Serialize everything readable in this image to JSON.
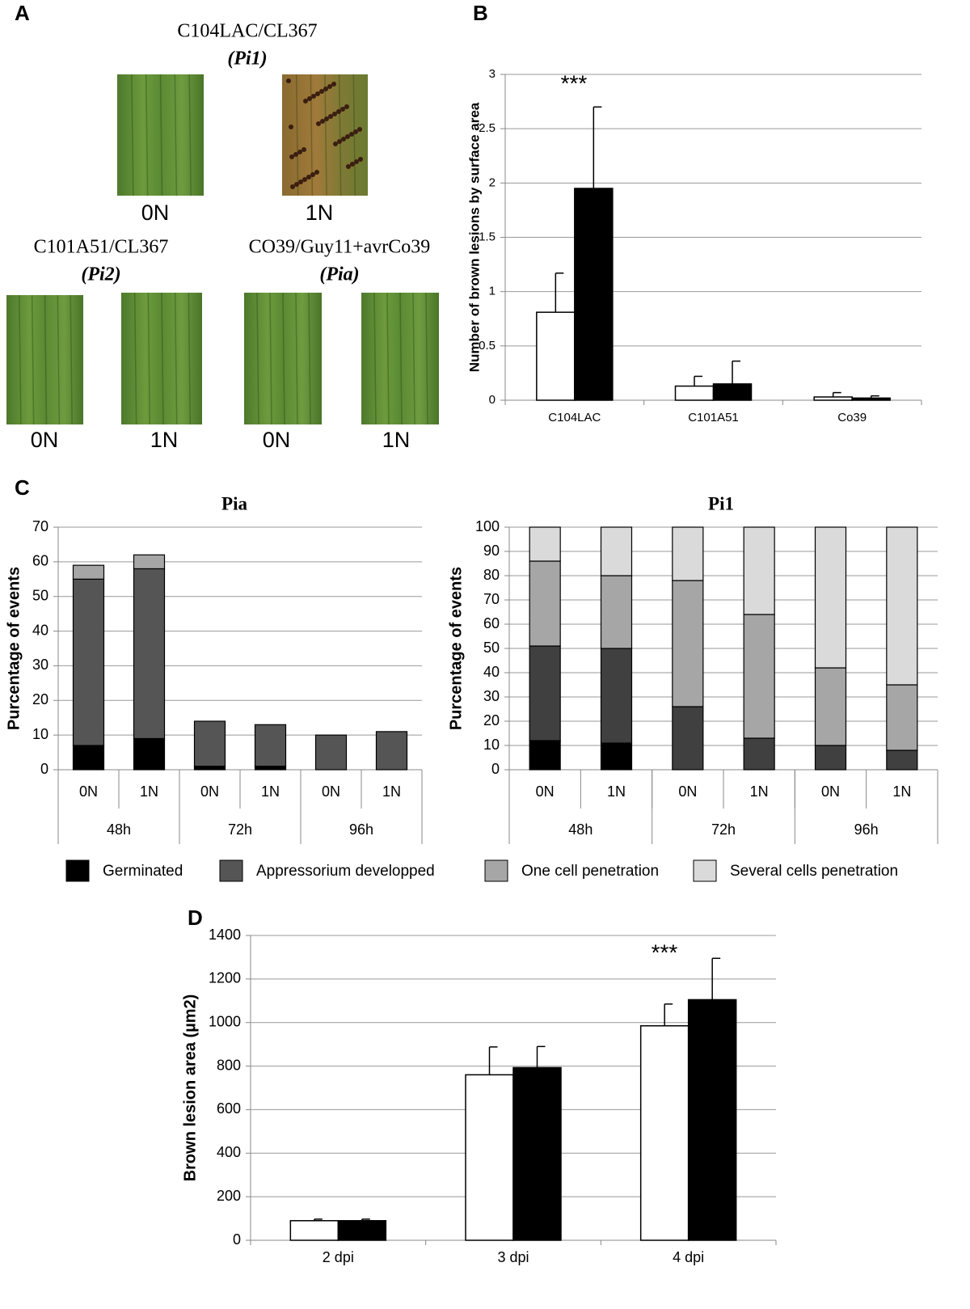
{
  "panel_labels": [
    "A",
    "B",
    "C",
    "D"
  ],
  "leaf_panel": {
    "groups": [
      {
        "title": "C104LAC/CL367",
        "allele": "(Pi1)",
        "leaves": [
          "0N",
          "1N"
        ]
      },
      {
        "title": "C101A51/CL367",
        "allele": "(Pi2)",
        "leaves": [
          "0N",
          "1N"
        ]
      },
      {
        "title": "CO39/Guy11+avrCo39",
        "allele": "(Pia)",
        "leaves": [
          "0N",
          "1N"
        ]
      }
    ]
  },
  "chart_data": [
    {
      "type": "bar",
      "ylabel": "Number of brown lesions by surface area",
      "annotation": "***",
      "categories": [
        "C104LAC",
        "C101A51",
        "Co39"
      ],
      "series": [
        {
          "color": "#ffffff",
          "values": [
            0.81,
            0.13,
            0.03
          ],
          "errors": [
            0.36,
            0.09,
            0.04
          ]
        },
        {
          "color": "#000000",
          "values": [
            1.95,
            0.15,
            0.02
          ],
          "errors": [
            0.75,
            0.21,
            0.02
          ]
        }
      ],
      "ylim": [
        0,
        3
      ],
      "yticks": [
        0,
        0.5,
        1,
        1.5,
        2,
        2.5,
        3
      ],
      "grid": true
    },
    {
      "type": "stacked_bar",
      "title": "Pia",
      "ylabel": "Purcentage of events",
      "legend": "bottom",
      "categories": [
        "0N",
        "1N",
        "0N",
        "1N",
        "0N",
        "1N"
      ],
      "groups": [
        "48h",
        "72h",
        "96h"
      ],
      "series": [
        {
          "name": "Germinated",
          "color": "#000000",
          "values": [
            7,
            9,
            1,
            1,
            0,
            0
          ]
        },
        {
          "name": "Appressorium developped",
          "color": "#555555",
          "values": [
            48,
            49,
            13,
            12,
            10,
            11
          ]
        },
        {
          "name": "One cell penetration",
          "color": "#a6a6a6",
          "values": [
            4,
            4,
            0,
            0,
            0,
            0
          ]
        },
        {
          "name": "Several cells penetration",
          "color": "#dadada",
          "values": [
            0,
            0,
            0,
            0,
            0,
            0
          ]
        }
      ],
      "ylim": [
        0,
        70
      ],
      "yticks": [
        0,
        10,
        20,
        30,
        40,
        50,
        60,
        70
      ],
      "grid": true
    },
    {
      "type": "stacked_bar",
      "title": "Pi1",
      "ylabel": "Purcentage of events",
      "categories": [
        "0N",
        "1N",
        "0N",
        "1N",
        "0N",
        "1N"
      ],
      "groups": [
        "48h",
        "72h",
        "96h"
      ],
      "series": [
        {
          "color": "#000000",
          "values": [
            12,
            11,
            0,
            0,
            0,
            0
          ]
        },
        {
          "color": "#404040",
          "values": [
            39,
            39,
            26,
            13,
            10,
            8
          ]
        },
        {
          "color": "#a6a6a6",
          "values": [
            35,
            30,
            52,
            51,
            32,
            27
          ]
        },
        {
          "color": "#dadada",
          "values": [
            14,
            20,
            22,
            36,
            58,
            65
          ]
        }
      ],
      "ylim": [
        0,
        100
      ],
      "yticks": [
        0,
        10,
        20,
        30,
        40,
        50,
        60,
        70,
        80,
        90,
        100
      ],
      "grid": true
    },
    {
      "type": "bar",
      "ylabel": "Brown lesion area (µm2)",
      "annotation": "***",
      "categories": [
        "2 dpi",
        "3 dpi",
        "4 dpi"
      ],
      "series": [
        {
          "color": "#ffffff",
          "values": [
            90,
            760,
            985
          ],
          "errors": [
            7,
            128,
            100
          ]
        },
        {
          "color": "#000000",
          "values": [
            90,
            793,
            1105
          ],
          "errors": [
            7,
            97,
            190
          ]
        }
      ],
      "ylim": [
        0,
        1400
      ],
      "yticks": [
        0,
        200,
        400,
        600,
        800,
        1000,
        1200,
        1400
      ],
      "grid": true
    }
  ]
}
